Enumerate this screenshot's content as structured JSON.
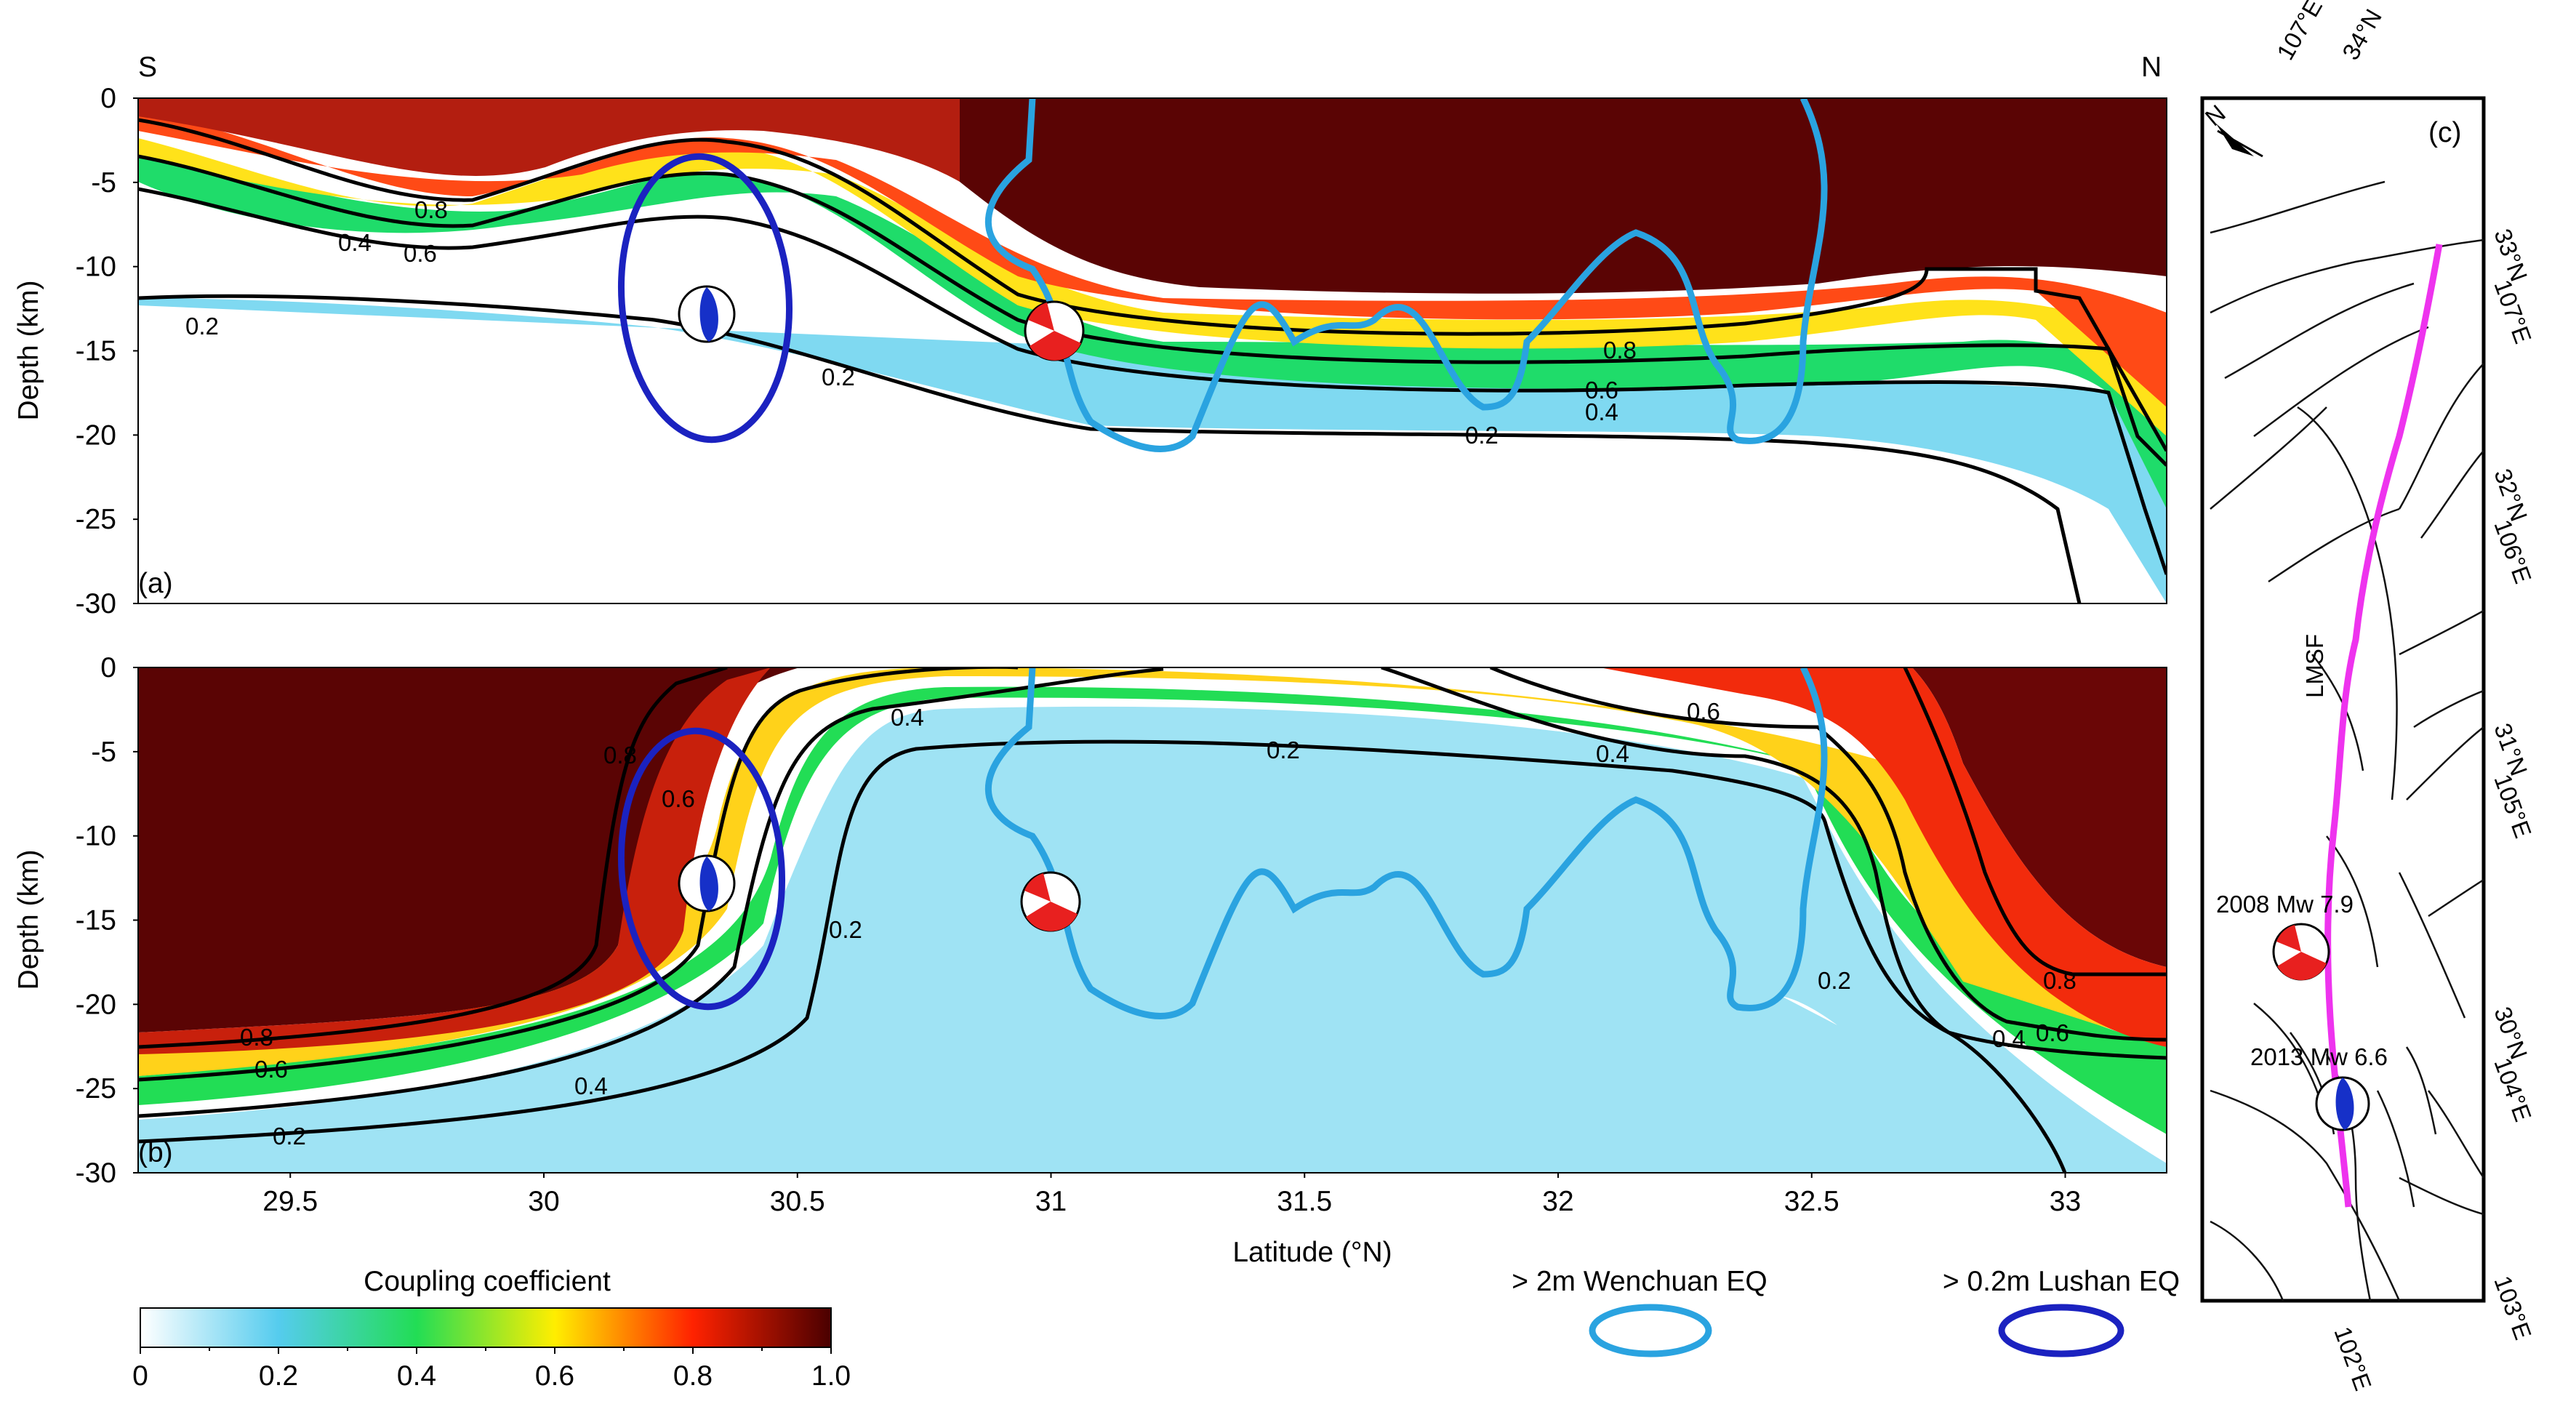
{
  "chart_data": [
    {
      "panel": "(a)",
      "type": "heatmap",
      "direction_labels": [
        "S",
        "N"
      ],
      "ylabel": "Depth (km)",
      "xlim": [
        29.2,
        33.2
      ],
      "ylim": [
        -30,
        0
      ],
      "y_ticks": [
        "0",
        "-5",
        "-10",
        "-15",
        "-20",
        "-25",
        "-30"
      ],
      "value_description": "Coupling coefficient",
      "contour_levels": [
        "0.2",
        "0.4",
        "0.6",
        "0.8"
      ],
      "coupling_profile": {
        "latitude": [
          29.2,
          29.5,
          29.8,
          30.1,
          30.3,
          30.6,
          30.8,
          31.0,
          31.2,
          31.5,
          31.8,
          32.1,
          32.4,
          32.7,
          32.9,
          33.2
        ],
        "depth_c08": [
          -1,
          -2,
          -4,
          -2,
          -1.5,
          -3,
          -7,
          -11,
          -15.5,
          -15.5,
          -15,
          -15,
          -14.5,
          -13,
          -11,
          -21
        ],
        "depth_c06": [
          -3,
          -6,
          -9,
          -6,
          -4,
          -6,
          -10,
          -13,
          -17,
          -17,
          -17,
          -16.5,
          -16,
          -16,
          -16,
          -21
        ],
        "depth_c04": [
          -6,
          -9,
          -11,
          -9,
          -8,
          -10,
          -13,
          -16,
          -18.5,
          -18.5,
          -18.5,
          -18,
          -17.5,
          -17,
          -17,
          -24
        ],
        "depth_c02": [
          -13,
          -14,
          -15,
          -15,
          -15.5,
          -16.5,
          -18,
          -19,
          -19.5,
          -19.5,
          -19.5,
          -19,
          -20,
          -21,
          -22,
          -29
        ]
      },
      "events": [
        {
          "name": "2008 Mw 7.9",
          "latitude": 31.0,
          "depth": -14,
          "color": "#e8201f"
        },
        {
          "name": "2013 Mw 6.6",
          "latitude": 30.3,
          "depth": -13,
          "color": "#1630c8"
        }
      ]
    },
    {
      "panel": "(b)",
      "type": "heatmap",
      "ylabel": "Depth (km)",
      "xlabel": "Latitude (°N)",
      "xlim": [
        29.2,
        33.2
      ],
      "ylim": [
        -30,
        0
      ],
      "x_ticks": [
        "29.5",
        "30",
        "30.5",
        "31",
        "31.5",
        "32",
        "32.5",
        "33"
      ],
      "y_ticks": [
        "0",
        "-5",
        "-10",
        "-15",
        "-20",
        "-25",
        "-30"
      ],
      "contour_levels": [
        "0.2",
        "0.4",
        "0.6",
        "0.8"
      ],
      "events": [
        {
          "name": "2008 Mw 7.9",
          "latitude": 31.0,
          "depth": -14,
          "color": "#e8201f"
        },
        {
          "name": "2013 Mw 6.6",
          "latitude": 30.3,
          "depth": -13,
          "color": "#1630c8"
        }
      ]
    }
  ],
  "colorbar": {
    "title": "Coupling coefficient",
    "ticks": [
      "0",
      "0.2",
      "0.4",
      "0.6",
      "0.8",
      "1.0"
    ],
    "colors": [
      "#ffffff",
      "#55ccee",
      "#22dd55",
      "#ffee00",
      "#ff2200",
      "#4a0000"
    ]
  },
  "legend": [
    {
      "label": "> 2m Wenchuan EQ",
      "color": "#2aa3e0"
    },
    {
      "label": "> 0.2m Lushan EQ",
      "color": "#1b22c0"
    }
  ],
  "map_panel": {
    "label": "(c)",
    "north_label": "N",
    "fault_label": "LMSF",
    "top_labels": [
      "107°E",
      "34°N"
    ],
    "right_labels": [
      "33°N",
      "107°E",
      "32°N",
      "106°E",
      "31°N",
      "105°E",
      "30°N",
      "104°E",
      "103°E"
    ],
    "bottom_label": "102°E",
    "quake_labels": [
      {
        "text": "2008 Mw 7.9",
        "color": "#e8201f"
      },
      {
        "text": "2013 Mw 6.6",
        "color": "#1630c8"
      }
    ],
    "fault_color": "#ee33ee"
  }
}
